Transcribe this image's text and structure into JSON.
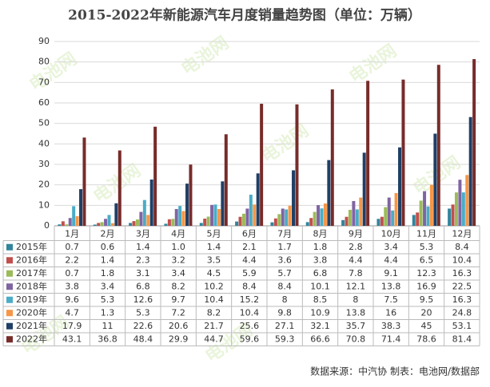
{
  "chart_data": {
    "type": "bar",
    "title": "2015-2022年新能源汽车月度销量趋势图（单位：万辆）",
    "categories": [
      "1月",
      "2月",
      "3月",
      "4月",
      "5月",
      "6月",
      "7月",
      "8月",
      "9月",
      "10月",
      "11月",
      "12月"
    ],
    "ylim": [
      0,
      90
    ],
    "yticks": [
      0,
      10,
      20,
      30,
      40,
      50,
      60,
      70,
      80,
      90
    ],
    "grid": true,
    "series": [
      {
        "name": "2015年",
        "color": "#31859c",
        "values": [
          0.7,
          0.6,
          1.4,
          1.0,
          1.4,
          2.1,
          1.7,
          1.8,
          2.8,
          3.4,
          5.3,
          8.4
        ],
        "value_labels": [
          "0.7",
          "0.6",
          "1.4",
          "1.0",
          "1.4",
          "2.1",
          "1.7",
          "1.8",
          "2.8",
          "3.4",
          "5.3",
          "8.4"
        ]
      },
      {
        "name": "2016年",
        "color": "#c0504d",
        "values": [
          2.2,
          1.4,
          2.3,
          3.2,
          3.5,
          4.4,
          3.6,
          3.8,
          4.4,
          4.4,
          6.5,
          10.4
        ],
        "value_labels": [
          "2.2",
          "1.4",
          "2.3",
          "3.2",
          "3.5",
          "4.4",
          "3.6",
          "3.8",
          "4.4",
          "4.4",
          "6.5",
          "10.4"
        ]
      },
      {
        "name": "2017年",
        "color": "#9bbb59",
        "values": [
          0.7,
          1.8,
          3.1,
          3.4,
          4.5,
          5.9,
          5.7,
          6.8,
          7.8,
          9.1,
          12.3,
          16.3
        ],
        "value_labels": [
          "0.7",
          "1.8",
          "3.1",
          "3.4",
          "4.5",
          "5.9",
          "5.7",
          "6.8",
          "7.8",
          "9.1",
          "12.3",
          "16.3"
        ]
      },
      {
        "name": "2018年",
        "color": "#8064a2",
        "values": [
          3.8,
          3.4,
          6.8,
          8.2,
          10.2,
          8.4,
          8.4,
          10.1,
          12.1,
          13.8,
          16.9,
          22.5
        ],
        "value_labels": [
          "3.8",
          "3.4",
          "6.8",
          "8.2",
          "10.2",
          "8.4",
          "8.4",
          "10.1",
          "12.1",
          "13.8",
          "16.9",
          "22.5"
        ]
      },
      {
        "name": "2019年",
        "color": "#4bacc6",
        "values": [
          9.6,
          5.3,
          12.6,
          9.7,
          10.4,
          15.2,
          8,
          8.5,
          8,
          7.5,
          9.5,
          16.3
        ],
        "value_labels": [
          "9.6",
          "5.3",
          "12.6",
          "9.7",
          "10.4",
          "15.2",
          "8",
          "8.5",
          "8",
          "7.5",
          "9.5",
          "16.3"
        ]
      },
      {
        "name": "2020年",
        "color": "#f79646",
        "values": [
          4.7,
          1.3,
          5.3,
          7.2,
          8.2,
          10.4,
          9.8,
          10.9,
          13.8,
          16,
          20,
          24.8
        ],
        "value_labels": [
          "4.7",
          "1.3",
          "5.3",
          "7.2",
          "8.2",
          "10.4",
          "9.8",
          "10.9",
          "13.8",
          "16",
          "20",
          "24.8"
        ]
      },
      {
        "name": "2021年",
        "color": "#1f3f66",
        "values": [
          17.9,
          11,
          22.6,
          20.6,
          21.7,
          25.6,
          27.1,
          32.1,
          35.7,
          38.3,
          45,
          53.1
        ],
        "value_labels": [
          "17.9",
          "11",
          "22.6",
          "20.6",
          "21.7",
          "25.6",
          "27.1",
          "32.1",
          "35.7",
          "38.3",
          "45",
          "53.1"
        ]
      },
      {
        "name": "2022年",
        "color": "#772c2a",
        "values": [
          43.1,
          36.8,
          48.4,
          29.9,
          44.7,
          59.6,
          59.3,
          66.6,
          70.8,
          71.4,
          78.6,
          81.4
        ],
        "value_labels": [
          "43.1",
          "36.8",
          "48.4",
          "29.9",
          "44.7",
          "59.6",
          "59.3",
          "66.6",
          "70.8",
          "71.4",
          "78.6",
          "81.4"
        ]
      }
    ],
    "watermark": "电池网",
    "source": "数据来源：中汽协  制表：电池网/数据部"
  }
}
